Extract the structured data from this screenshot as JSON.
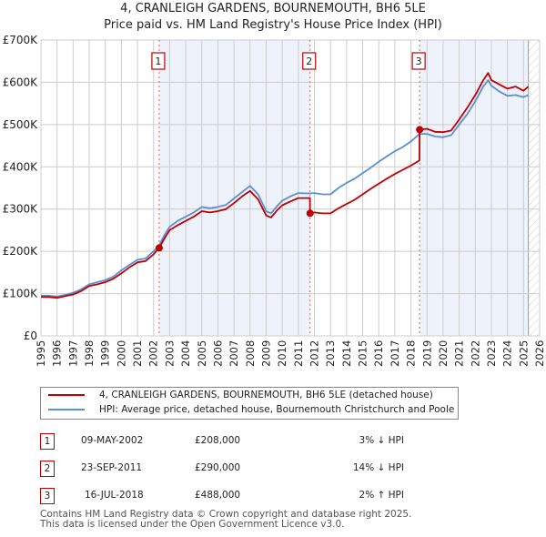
{
  "header": {
    "title": "4, CRANLEIGH GARDENS, BOURNEMOUTH, BH6 5LE",
    "subtitle": "Price paid vs. HM Land Registry's House Price Index (HPI)"
  },
  "legend": {
    "items": [
      {
        "label": "4, CRANLEIGH GARDENS, BOURNEMOUTH, BH6 5LE (detached house)",
        "color": "#c00000"
      },
      {
        "label": "HPI: Average price, detached house, Bournemouth Christchurch and Poole",
        "color": "#5b8fd0"
      }
    ]
  },
  "sales": [
    {
      "num": "1",
      "date": "09-MAY-2002",
      "price": "£208,000",
      "hpi": "3% ↓ HPI"
    },
    {
      "num": "2",
      "date": "23-SEP-2011",
      "price": "£290,000",
      "hpi": "14% ↓ HPI"
    },
    {
      "num": "3",
      "date": "16-JUL-2018",
      "price": "£488,000",
      "hpi": "2% ↑ HPI"
    }
  ],
  "footer": {
    "line1": "Contains HM Land Registry data © Crown copyright and database right 2025.",
    "line2": "This data is licensed under the Open Government Licence v3.0."
  },
  "colors": {
    "property": "#c00000",
    "hpi": "#5b8fd0",
    "shade": "#eef2fb",
    "grid": "#cccccc",
    "marker_line": "#e06060"
  },
  "chart_data": {
    "type": "line",
    "title": "4, CRANLEIGH GARDENS, BOURNEMOUTH, BH6 5LE",
    "subtitle": "Price paid vs. HM Land Registry's House Price Index (HPI)",
    "xlabel": "",
    "ylabel": "",
    "xlim": [
      1995,
      2026
    ],
    "ylim": [
      0,
      700000
    ],
    "grid": true,
    "legend_position": "bottom",
    "x_ticks": [
      "1995",
      "1996",
      "1997",
      "1998",
      "1999",
      "2000",
      "2001",
      "2002",
      "2003",
      "2004",
      "2005",
      "2006",
      "2007",
      "2008",
      "2009",
      "2010",
      "2011",
      "2012",
      "2013",
      "2014",
      "2015",
      "2016",
      "2017",
      "2018",
      "2019",
      "2020",
      "2021",
      "2022",
      "2023",
      "2024",
      "2025",
      "2026"
    ],
    "y_ticks": [
      {
        "value": 0,
        "label": "£0"
      },
      {
        "value": 100000,
        "label": "£100K"
      },
      {
        "value": 200000,
        "label": "£200K"
      },
      {
        "value": 300000,
        "label": "£300K"
      },
      {
        "value": 400000,
        "label": "£400K"
      },
      {
        "value": 500000,
        "label": "£500K"
      },
      {
        "value": 600000,
        "label": "£600K"
      },
      {
        "value": 700000,
        "label": "£700K"
      }
    ],
    "shaded_ranges": [
      [
        2002.35,
        2011.73
      ],
      [
        2018.54,
        2025.3
      ]
    ],
    "future_hatch_from": 2025.3,
    "sale_markers": [
      {
        "label": "1",
        "x": 2002.35,
        "y": 208000
      },
      {
        "label": "2",
        "x": 2011.73,
        "y": 290000
      },
      {
        "label": "3",
        "x": 2018.54,
        "y": 488000
      }
    ],
    "series": [
      {
        "name": "HPI: Average price, detached house, Bournemouth Christchurch and Poole",
        "color": "#5b8fd0",
        "x": [
          1995,
          1995.5,
          1996,
          1996.5,
          1997,
          1997.5,
          1998,
          1998.5,
          1999,
          1999.5,
          2000,
          2000.5,
          2001,
          2001.5,
          2002,
          2002.35,
          2002.7,
          2003,
          2003.5,
          2004,
          2004.5,
          2005,
          2005.5,
          2006,
          2006.5,
          2007,
          2007.5,
          2008,
          2008.5,
          2009,
          2009.3,
          2009.7,
          2010,
          2010.5,
          2011,
          2011.73,
          2012,
          2012.5,
          2013,
          2013.5,
          2014,
          2014.5,
          2015,
          2015.5,
          2016,
          2016.5,
          2017,
          2017.5,
          2018,
          2018.54,
          2019,
          2019.5,
          2020,
          2020.5,
          2021,
          2021.5,
          2022,
          2022.5,
          2022.8,
          2023,
          2023.5,
          2024,
          2024.5,
          2025,
          2025.3
        ],
        "y": [
          95000,
          95000,
          93000,
          97000,
          102000,
          110000,
          122000,
          127000,
          132000,
          140000,
          155000,
          168000,
          180000,
          183000,
          200000,
          214000,
          240000,
          258000,
          272000,
          282000,
          292000,
          305000,
          302000,
          305000,
          310000,
          325000,
          340000,
          355000,
          335000,
          295000,
          290000,
          308000,
          320000,
          330000,
          338000,
          337000,
          338000,
          335000,
          335000,
          350000,
          362000,
          372000,
          385000,
          398000,
          412000,
          425000,
          437000,
          447000,
          460000,
          478000,
          478000,
          472000,
          470000,
          475000,
          500000,
          525000,
          555000,
          590000,
          605000,
          592000,
          578000,
          568000,
          570000,
          565000,
          570000
        ]
      },
      {
        "name": "4, CRANLEIGH GARDENS, BOURNEMOUTH, BH6 5LE (detached house)",
        "color": "#c00000",
        "x": [
          1995,
          1995.5,
          1996,
          1996.5,
          1997,
          1997.5,
          1998,
          1998.5,
          1999,
          1999.5,
          2000,
          2000.5,
          2001,
          2001.5,
          2002,
          2002.35,
          2002.7,
          2003,
          2003.5,
          2004,
          2004.5,
          2005,
          2005.5,
          2006,
          2006.5,
          2007,
          2007.5,
          2008,
          2008.5,
          2009,
          2009.3,
          2009.7,
          2010,
          2010.5,
          2011,
          2011.72,
          2011.73,
          2012,
          2012.5,
          2013,
          2013.5,
          2014,
          2014.5,
          2015,
          2015.5,
          2016,
          2016.5,
          2017,
          2017.5,
          2018,
          2018.53,
          2018.54,
          2019,
          2019.5,
          2020,
          2020.5,
          2021,
          2021.5,
          2022,
          2022.5,
          2022.8,
          2023,
          2023.5,
          2024,
          2024.5,
          2025,
          2025.3
        ],
        "y": [
          92000,
          92000,
          90000,
          94000,
          98000,
          106000,
          118000,
          122000,
          127000,
          135000,
          148000,
          162000,
          174000,
          177000,
          193000,
          208000,
          232000,
          250000,
          262000,
          272000,
          282000,
          295000,
          292000,
          295000,
          300000,
          314000,
          330000,
          343000,
          323000,
          285000,
          280000,
          298000,
          309000,
          318000,
          326000,
          326000,
          290000,
          292000,
          290000,
          290000,
          302000,
          312000,
          322000,
          335000,
          348000,
          360000,
          372000,
          383000,
          393000,
          403000,
          415000,
          488000,
          490000,
          483000,
          482000,
          486000,
          512000,
          540000,
          570000,
          605000,
          622000,
          605000,
          595000,
          585000,
          590000,
          580000,
          590000
        ]
      }
    ]
  }
}
